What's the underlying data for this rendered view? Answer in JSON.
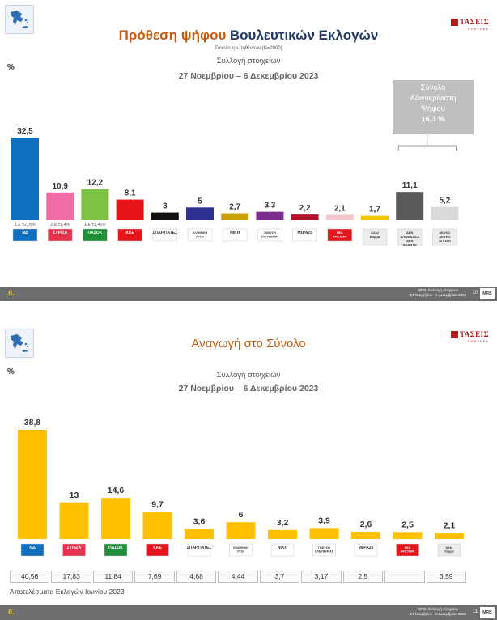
{
  "brand": {
    "name": "ΤΑΣΕΙΣ",
    "tagline": "ΕΡΕΥΝΕΣ"
  },
  "slide1": {
    "title_part1": "Πρόθεση ψήφου",
    "title_part2": "Βουλευτικών Εκλογών",
    "sample_note": "Σύνολο ερωτηθέντων (Ν=2000)",
    "collection": "Συλλογή στοιχείων",
    "dates": "27 Νοεμβρίου – 6 Δεκεμβρίου 2023",
    "percent_label": "%",
    "callout_lines": [
      "Σύνολο",
      "Αδιευκρίνιστη",
      "Ψήφου",
      "16,3 %"
    ],
    "footer": {
      "num": "8.",
      "source_line1": "MRB, Συλλογή στοιχείων",
      "source_line2": "27 Νοεμβρίου - 6 Δεκεμβρίου 2023",
      "page": "10",
      "logo": "MRB"
    }
  },
  "slide2": {
    "title": "Αναγωγή στο Σύνολο",
    "collection": "Συλλογή στοιχείων",
    "dates": "27 Νοεμβρίου – 6 Δεκεμβρίου 2023",
    "percent_label": "%",
    "results_caption": "Αποτελέσματα Εκλογών Ιουνίου 2023",
    "footer": {
      "num": "8.",
      "source_line1": "MRB, Συλλογή στοιχείων",
      "source_line2": "27 Νοεμβρίου - 6 Δεκεμβρίου 2023",
      "page": "11",
      "logo": "MRB"
    }
  },
  "chart_data": [
    {
      "type": "bar",
      "title": "Πρόθεση ψήφου Βουλευτικών Εκλογών",
      "ylabel": "%",
      "categories": [
        "ΝΔ",
        "ΣΥΡΙΖΑ",
        "ΠΑΣΟΚ",
        "ΚΚΕ",
        "ΣΠΑΡΤΙΑΤΕΣ",
        "ΕΛΛΗΝΙΚΗ ΛΥΣΗ",
        "ΝΙΚΗ",
        "ΠΛΕΥΣΗ ΕΛΕΥΘΕΡΙΑΣ",
        "ΜέΡΑ25",
        "ΝΕΑ ΑΡΙΣΤΕΡΑ",
        "Άλλο Κόμμα",
        "ΔΕΝ ΑΠΟΦΑΣΙΣΑ/ΔΕΝ ΑΠΑΝΤΩ",
        "ΛΕΥΚΟ/ΑΚΥΡΟ/ΑΠΟΧΗ"
      ],
      "values": [
        32.5,
        10.9,
        12.2,
        8.1,
        3,
        5,
        2.7,
        3.3,
        2.2,
        2.1,
        1.7,
        11.1,
        5.2
      ],
      "value_labels": [
        "32,5",
        "10,9",
        "12,2",
        "8,1",
        "3",
        "5",
        "2,7",
        "3,3",
        "2,2",
        "2,1",
        "1,7",
        "11,1",
        "5,2"
      ],
      "bar_colors": [
        "#0f6fbf",
        "#f06ca4",
        "#7dc242",
        "#e8141b",
        "#111111",
        "#2e3192",
        "#c9a400",
        "#7b2d8e",
        "#b3122b",
        "#f6c6cc",
        "#f2c200",
        "#595959",
        "#d9d9d9"
      ],
      "error_margins": [
        "Σ.Ε ±2,05%",
        "Σ.Ε ±1,4%",
        "Σ.Ε ±1,46%"
      ],
      "logo_texts": [
        "ΝΔ",
        "ΣΥΡΙΖΑ",
        "ΠΑΣΟΚ",
        "ΚΚΕ",
        "ΣΠΑΡΤΙΑΤΕΣ",
        "ΕΛΛΗΝΙΚΗ ΛΥΣΗ",
        "ΝΙΚΗ",
        "ΠΛΕΥΣΗ ΕΛΕΥΘΕΡΙΑΣ",
        "ΜέΡΑ25",
        "ΝΕΑ ΑΡΙΣΤΕΡΑ",
        "Άλλο Κόμμα",
        "ΔΕΝ ΑΠΟΦΑΣΙΣΑ ΔΕΝ ΑΠΑΝΤΩ",
        "ΛΕΥΚΟ ΑΚΥΡΟ ΑΠΟΧΗ"
      ],
      "ylim": [
        0,
        35
      ],
      "grid": false,
      "legend": "none"
    },
    {
      "type": "bar",
      "title": "Αναγωγή στο Σύνολο",
      "ylabel": "%",
      "categories": [
        "ΝΔ",
        "ΣΥΡΙΖΑ",
        "ΠΑΣΟΚ",
        "ΚΚΕ",
        "ΣΠΑΡΤΙΑΤΕΣ",
        "ΕΛΛΗΝΙΚΗ ΛΥΣΗ",
        "ΝΙΚΗ",
        "ΠΛΕΥΣΗ ΕΛΕΥΘΕΡΙΑΣ",
        "ΜέΡΑ25",
        "ΝΕΑ ΑΡΙΣΤΕΡΑ",
        "Άλλο Κόμμα"
      ],
      "values": [
        38.8,
        13,
        14.6,
        9.7,
        3.6,
        6,
        3.2,
        3.9,
        2.6,
        2.5,
        2.1
      ],
      "value_labels": [
        "38,8",
        "13",
        "14,6",
        "9,7",
        "3,6",
        "6",
        "3,2",
        "3,9",
        "2,6",
        "2,5",
        "2,1"
      ],
      "bar_colors": [
        "#ffc000"
      ],
      "logo_texts": [
        "ΝΔ",
        "ΣΥΡΙΖΑ",
        "ΠΑΣΟΚ",
        "ΚΚΕ",
        "ΣΠΑΡΤΙΑΤΕΣ",
        "ΕΛΛΗΝΙΚΗ ΛΥΣΗ",
        "ΝΙΚΗ",
        "ΠΛΕΥΣΗ ΕΛΕΥΘΕΡΙΑΣ",
        "ΜέΡΑ25",
        "ΝΕΑ ΑΡΙΣΤΕΡΑ",
        "Άλλο Κόμμα"
      ],
      "previous_results_label": "Αποτελέσματα Εκλογών Ιουνίου 2023",
      "previous_results": [
        "40,56",
        "17,83",
        "11,84",
        "7,69",
        "4,68",
        "4,44",
        "3,7",
        "3,17",
        "2,5",
        "",
        "3,59"
      ],
      "ylim": [
        0,
        42
      ],
      "grid": false,
      "legend": "none"
    }
  ]
}
